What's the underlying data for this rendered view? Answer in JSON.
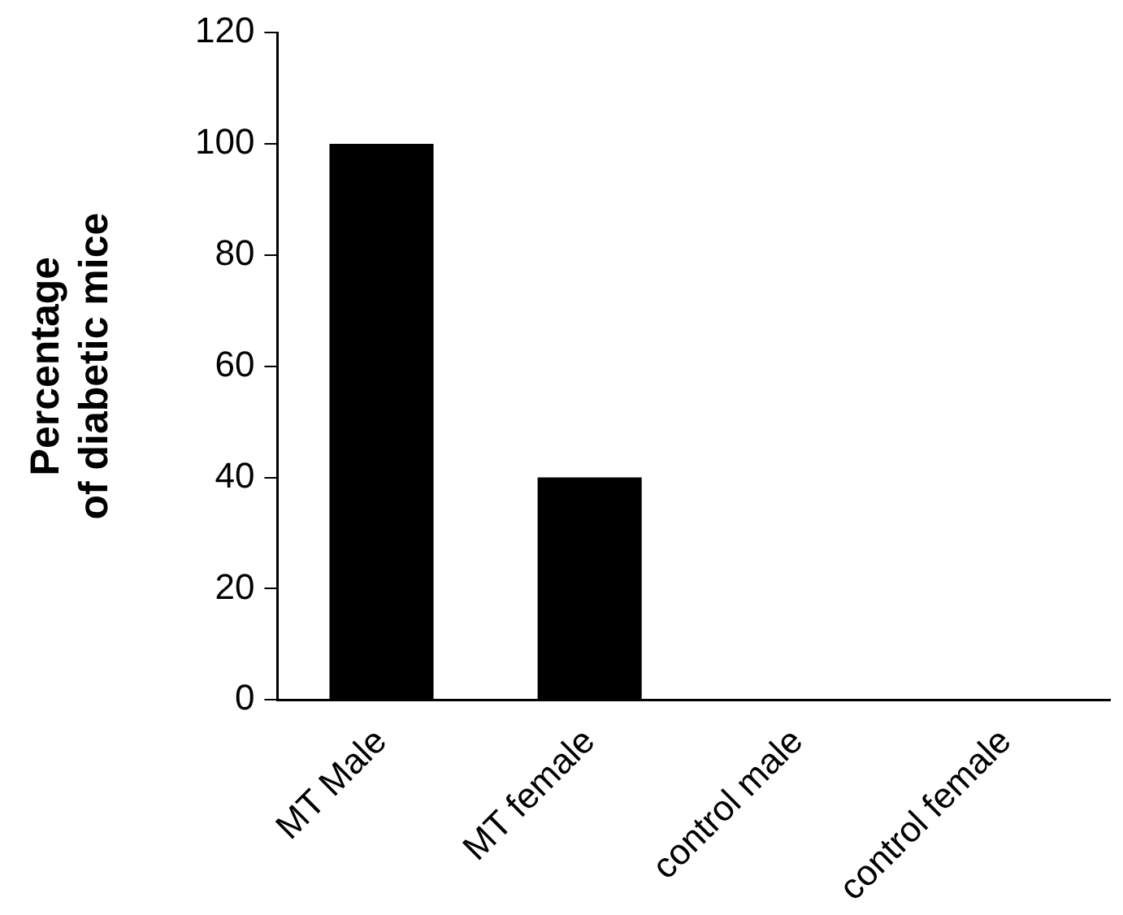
{
  "chart_data": {
    "type": "bar",
    "ylabel": "Percentage\nof diabetic mice",
    "categories": [
      "MT Male",
      "MT female",
      "control male",
      "control female"
    ],
    "values": [
      100,
      40,
      0,
      0
    ],
    "color": "#000000",
    "ylim": [
      0,
      120
    ],
    "yticks": [
      0,
      20,
      40,
      60,
      80,
      100,
      120
    ],
    "grid": false,
    "legend": false
  }
}
